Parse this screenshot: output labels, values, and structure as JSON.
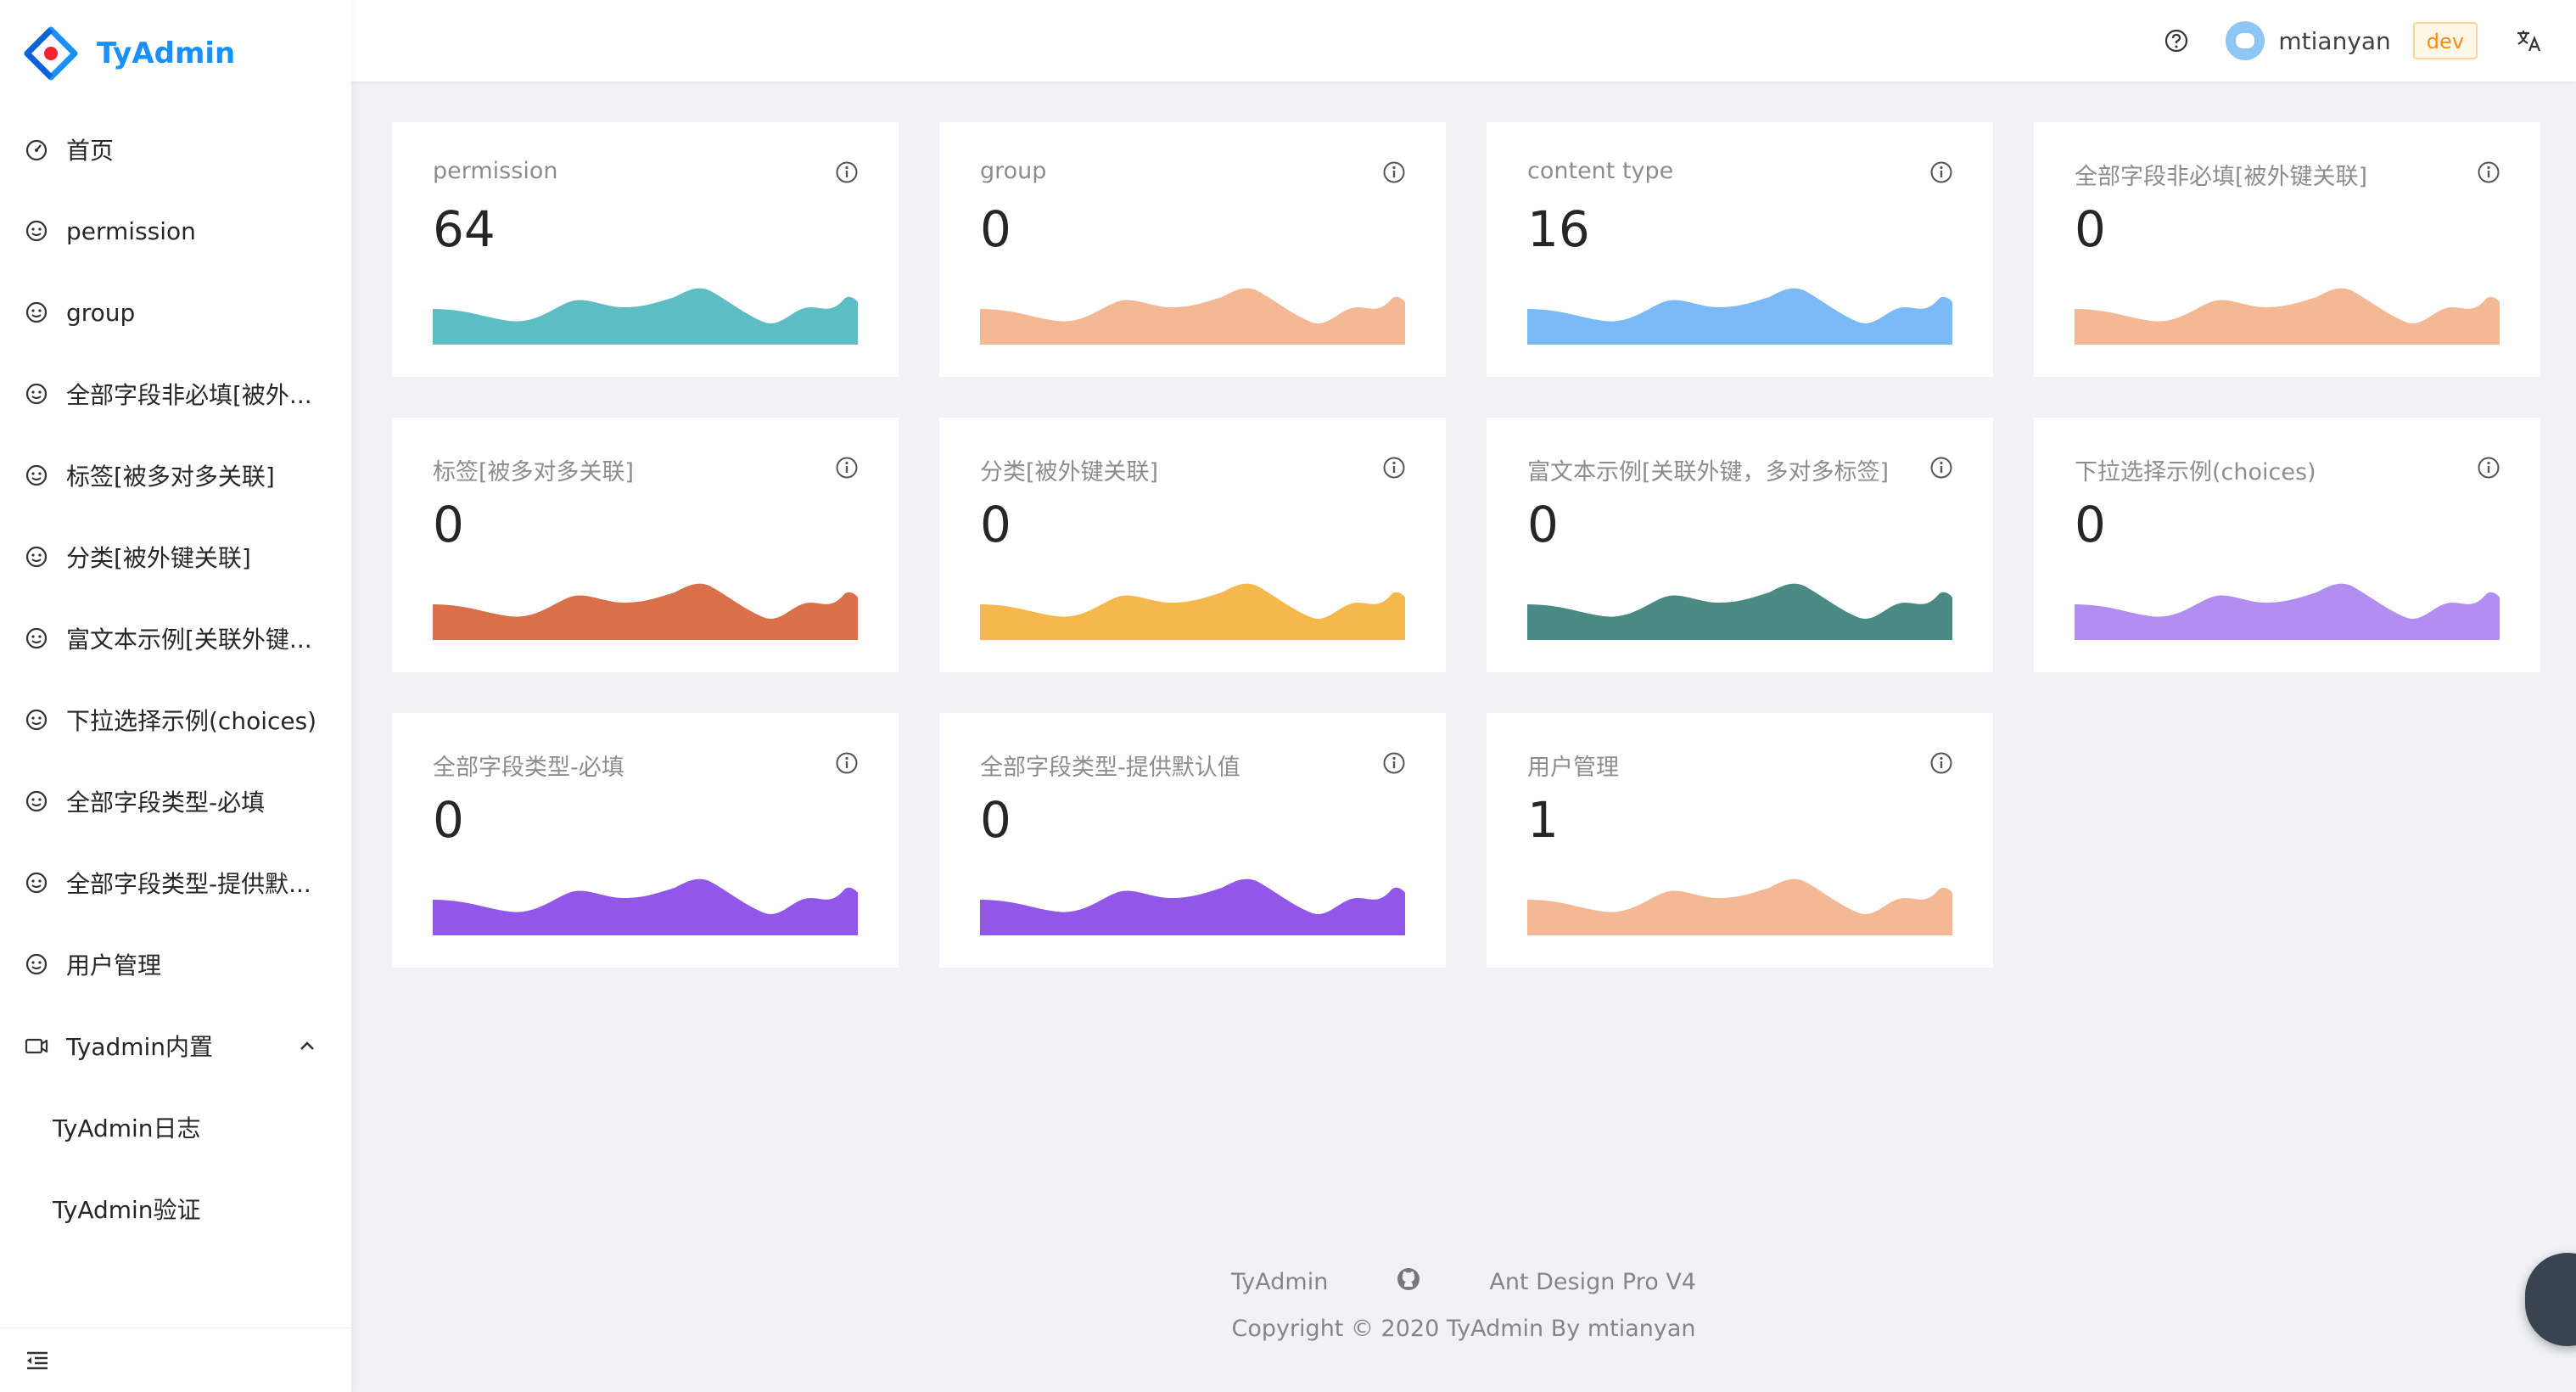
{
  "app": {
    "title": "TyAdmin",
    "brand_color": "#1890ff"
  },
  "sidebar": {
    "items": [
      {
        "label": "首页",
        "icon": "dashboard-icon"
      },
      {
        "label": "permission",
        "icon": "smile-icon"
      },
      {
        "label": "group",
        "icon": "smile-icon"
      },
      {
        "label": "全部字段非必填[被外...",
        "icon": "smile-icon"
      },
      {
        "label": "标签[被多对多关联]",
        "icon": "smile-icon"
      },
      {
        "label": "分类[被外键关联]",
        "icon": "smile-icon"
      },
      {
        "label": "富文本示例[关联外键...",
        "icon": "smile-icon"
      },
      {
        "label": "下拉选择示例(choices)",
        "icon": "smile-icon"
      },
      {
        "label": "全部字段类型-必填",
        "icon": "smile-icon"
      },
      {
        "label": "全部字段类型-提供默...",
        "icon": "smile-icon"
      },
      {
        "label": "用户管理",
        "icon": "smile-icon"
      }
    ],
    "group": {
      "label": "Tyadmin内置",
      "icon": "video-camera-icon",
      "expanded": true
    },
    "sub_items": [
      {
        "label": "TyAdmin日志"
      },
      {
        "label": "TyAdmin验证"
      }
    ]
  },
  "header": {
    "username": "mtianyan",
    "env": "dev"
  },
  "cards": [
    {
      "title": "permission",
      "value": "64",
      "color": "#5cbec4"
    },
    {
      "title": "group",
      "value": "0",
      "color": "#f5b895"
    },
    {
      "title": "content type",
      "value": "16",
      "color": "#7cb9f7"
    },
    {
      "title": "全部字段非必填[被外键关联]",
      "value": "0",
      "color": "#f5b895"
    },
    {
      "title": "标签[被多对多关联]",
      "value": "0",
      "color": "#d9704a"
    },
    {
      "title": "分类[被外键关联]",
      "value": "0",
      "color": "#f5b84c"
    },
    {
      "title": "富文本示例[关联外键，多对多标签]",
      "value": "0",
      "color": "#4a8a84"
    },
    {
      "title": "下拉选择示例(choices)",
      "value": "0",
      "color": "#b28ef3"
    },
    {
      "title": "全部字段类型-必填",
      "value": "0",
      "color": "#9257e8"
    },
    {
      "title": "全部字段类型-提供默认值",
      "value": "0",
      "color": "#9257e8"
    },
    {
      "title": "用户管理",
      "value": "1",
      "color": "#f5b895"
    }
  ],
  "footer": {
    "link1": "TyAdmin",
    "link2": "Ant Design Pro V4",
    "copyright": "Copyright © 2020 TyAdmin By mtianyan"
  }
}
